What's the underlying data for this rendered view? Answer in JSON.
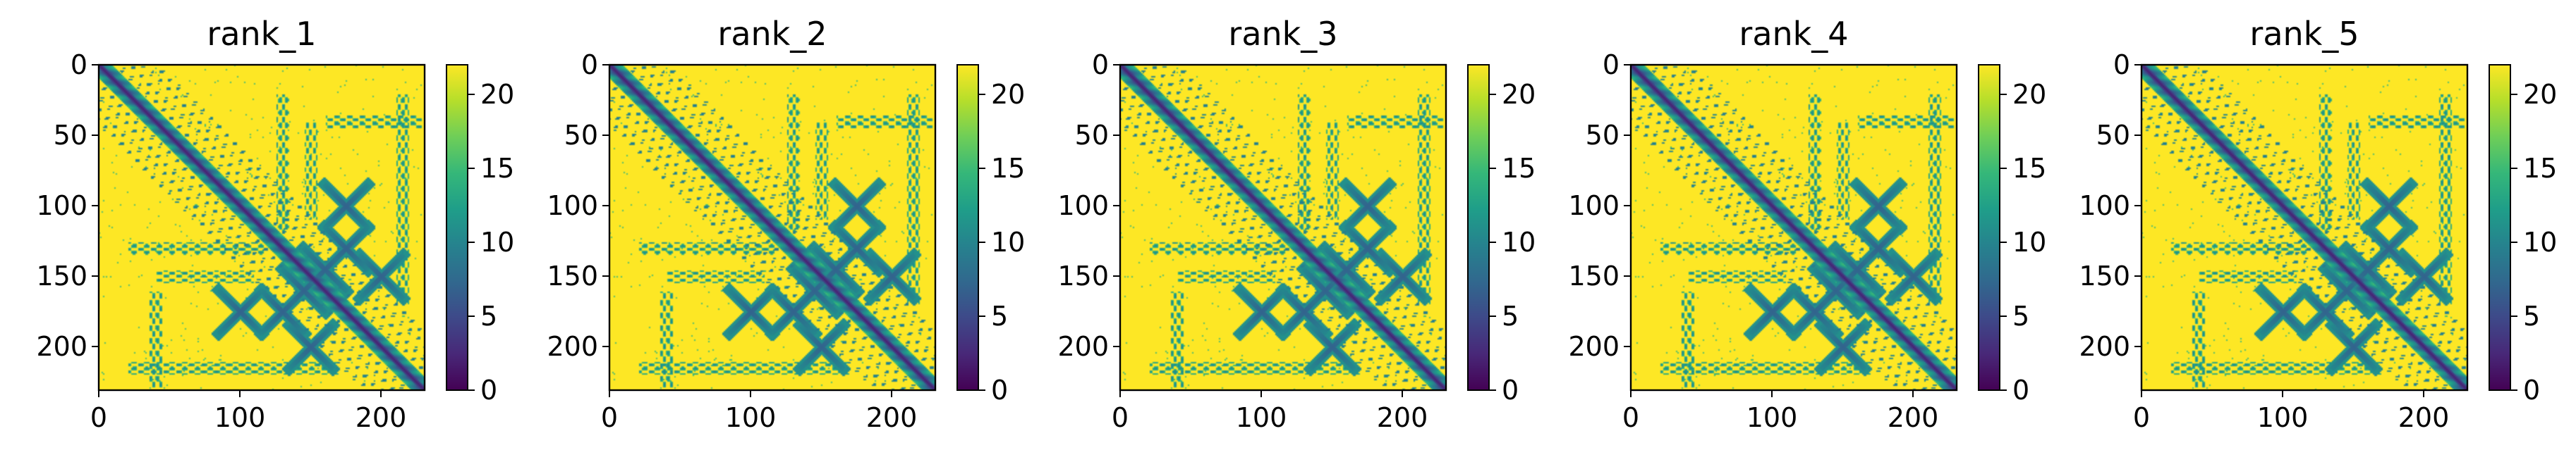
{
  "figure": {
    "panel_count": 5,
    "colormap": "viridis",
    "colormap_stops": [
      "#440154",
      "#482878",
      "#3e4989",
      "#31688e",
      "#26828e",
      "#1f9e89",
      "#35b779",
      "#6ece58",
      "#b5de2b",
      "#fde725"
    ]
  },
  "chart_data": [
    {
      "type": "heatmap",
      "title": "rank_1",
      "xlabel": "",
      "ylabel": "",
      "matrix_size": 231,
      "x_ticks": [
        0,
        100,
        200
      ],
      "y_ticks": [
        0,
        50,
        100,
        150,
        200
      ],
      "xlim": [
        0,
        231
      ],
      "ylim": [
        231,
        0
      ],
      "colorbar": {
        "range": [
          0,
          22
        ],
        "ticks": [
          0,
          5,
          10,
          15,
          20
        ]
      },
      "features": {
        "diagonal_band": true,
        "crossings": [
          [
            100,
            175
          ],
          [
            130,
            175
          ],
          [
            160,
            145
          ],
          [
            175,
            100
          ],
          [
            175,
            130
          ],
          [
            145,
            160
          ],
          [
            200,
            150
          ],
          [
            150,
            200
          ]
        ],
        "strips": [
          [
            215,
            20,
            170
          ],
          [
            130,
            20,
            120
          ],
          [
            150,
            40,
            110
          ],
          [
            40,
            160,
            230
          ]
        ]
      }
    },
    {
      "type": "heatmap",
      "title": "rank_2",
      "xlabel": "",
      "ylabel": "",
      "matrix_size": 231,
      "x_ticks": [
        0,
        100,
        200
      ],
      "y_ticks": [
        0,
        50,
        100,
        150,
        200
      ],
      "xlim": [
        0,
        231
      ],
      "ylim": [
        231,
        0
      ],
      "colorbar": {
        "range": [
          0,
          22
        ],
        "ticks": [
          0,
          5,
          10,
          15,
          20
        ]
      },
      "features": {
        "diagonal_band": true,
        "crossings": [
          [
            100,
            175
          ],
          [
            130,
            175
          ],
          [
            160,
            145
          ],
          [
            175,
            100
          ],
          [
            175,
            130
          ],
          [
            145,
            160
          ],
          [
            200,
            150
          ],
          [
            150,
            200
          ]
        ],
        "strips": [
          [
            215,
            20,
            170
          ],
          [
            130,
            20,
            120
          ],
          [
            150,
            40,
            110
          ],
          [
            40,
            160,
            230
          ]
        ]
      }
    },
    {
      "type": "heatmap",
      "title": "rank_3",
      "xlabel": "",
      "ylabel": "",
      "matrix_size": 231,
      "x_ticks": [
        0,
        100,
        200
      ],
      "y_ticks": [
        0,
        50,
        100,
        150,
        200
      ],
      "xlim": [
        0,
        231
      ],
      "ylim": [
        231,
        0
      ],
      "colorbar": {
        "range": [
          0,
          22
        ],
        "ticks": [
          0,
          5,
          10,
          15,
          20
        ]
      },
      "features": {
        "diagonal_band": true,
        "crossings": [
          [
            100,
            175
          ],
          [
            130,
            175
          ],
          [
            160,
            145
          ],
          [
            175,
            100
          ],
          [
            175,
            130
          ],
          [
            145,
            160
          ],
          [
            200,
            150
          ],
          [
            150,
            200
          ]
        ],
        "strips": [
          [
            215,
            20,
            170
          ],
          [
            130,
            20,
            120
          ],
          [
            150,
            40,
            110
          ],
          [
            40,
            160,
            230
          ]
        ]
      }
    },
    {
      "type": "heatmap",
      "title": "rank_4",
      "xlabel": "",
      "ylabel": "",
      "matrix_size": 231,
      "x_ticks": [
        0,
        100,
        200
      ],
      "y_ticks": [
        0,
        50,
        100,
        150,
        200
      ],
      "xlim": [
        0,
        231
      ],
      "ylim": [
        231,
        0
      ],
      "colorbar": {
        "range": [
          0,
          22
        ],
        "ticks": [
          0,
          5,
          10,
          15,
          20
        ]
      },
      "features": {
        "diagonal_band": true,
        "crossings": [
          [
            100,
            175
          ],
          [
            130,
            175
          ],
          [
            160,
            145
          ],
          [
            175,
            100
          ],
          [
            175,
            130
          ],
          [
            145,
            160
          ],
          [
            200,
            150
          ],
          [
            150,
            200
          ]
        ],
        "strips": [
          [
            215,
            20,
            170
          ],
          [
            130,
            20,
            120
          ],
          [
            150,
            40,
            110
          ],
          [
            40,
            160,
            230
          ]
        ]
      }
    },
    {
      "type": "heatmap",
      "title": "rank_5",
      "xlabel": "",
      "ylabel": "",
      "matrix_size": 231,
      "x_ticks": [
        0,
        100,
        200
      ],
      "y_ticks": [
        0,
        50,
        100,
        150,
        200
      ],
      "xlim": [
        0,
        231
      ],
      "ylim": [
        231,
        0
      ],
      "colorbar": {
        "range": [
          0,
          22
        ],
        "ticks": [
          0,
          5,
          10,
          15,
          20
        ]
      },
      "features": {
        "diagonal_band": true,
        "crossings": [
          [
            100,
            175
          ],
          [
            130,
            175
          ],
          [
            160,
            145
          ],
          [
            175,
            100
          ],
          [
            175,
            130
          ],
          [
            145,
            160
          ],
          [
            200,
            150
          ],
          [
            150,
            200
          ]
        ],
        "strips": [
          [
            215,
            20,
            170
          ],
          [
            130,
            20,
            120
          ],
          [
            150,
            40,
            110
          ],
          [
            40,
            160,
            230
          ]
        ]
      }
    }
  ]
}
